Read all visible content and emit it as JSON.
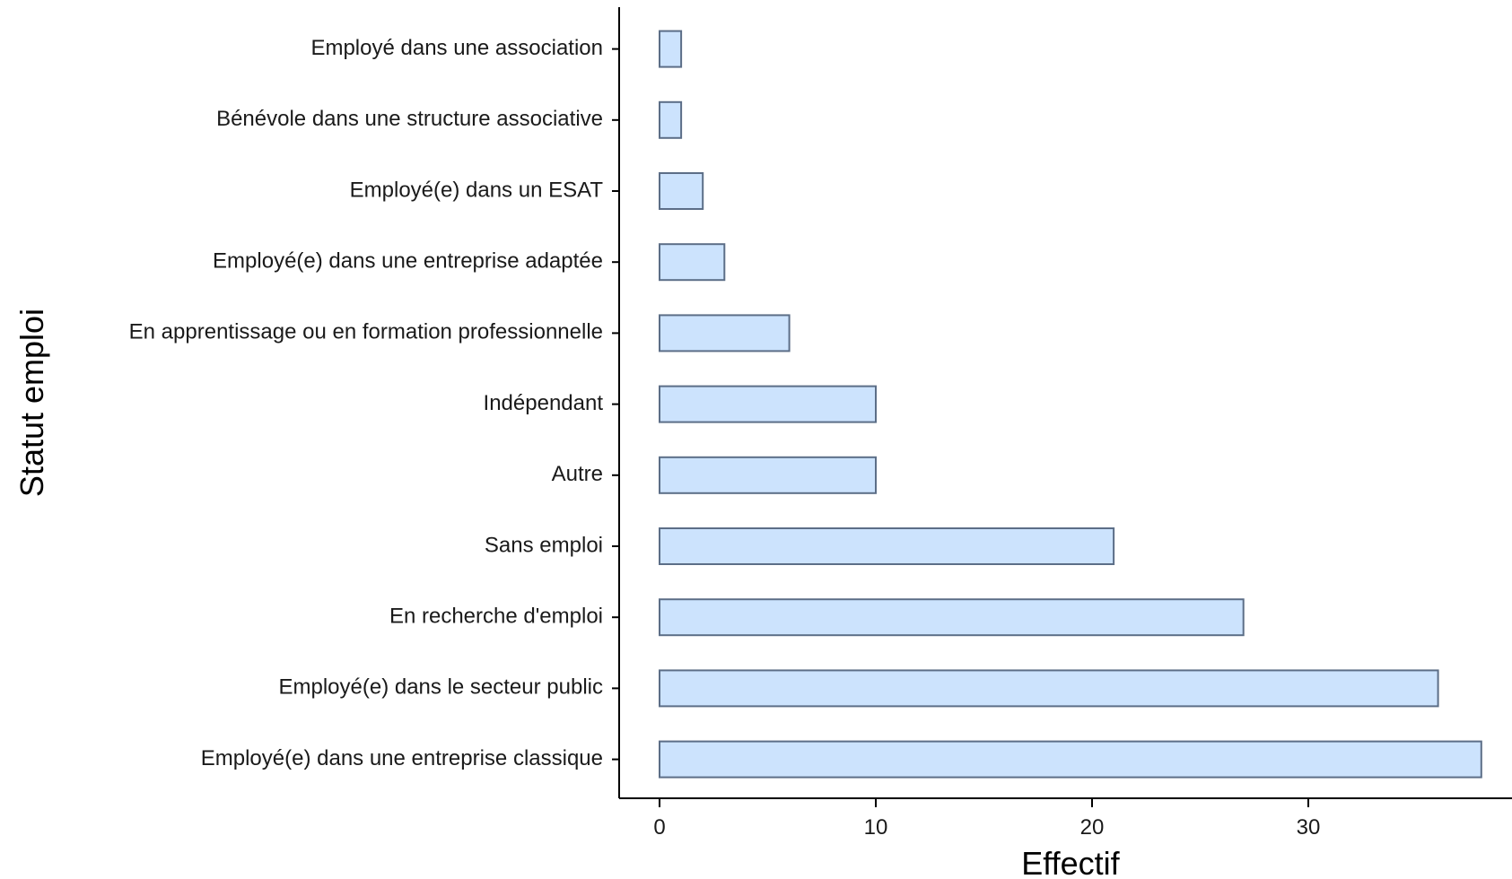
{
  "chart_data": {
    "type": "bar",
    "orientation": "horizontal",
    "title": "",
    "xlabel": "Effectif",
    "ylabel": "Statut emploi",
    "categories": [
      "Employé(e) dans une entreprise classique",
      "Employé(e) dans le secteur public",
      "En recherche d'emploi",
      "Sans emploi",
      "Autre",
      "Indépendant",
      "En apprentissage ou en formation professionnelle",
      "Employé(e) dans une entreprise adaptée",
      "Employé(e) dans un ESAT",
      "Bénévole dans une structure associative",
      "Employé dans une association"
    ],
    "values": [
      38,
      36,
      27,
      21,
      10,
      10,
      6,
      3,
      2,
      1,
      1
    ],
    "xlim": [
      0,
      38
    ],
    "xticks": [
      0,
      10,
      20,
      30
    ],
    "grid": false,
    "legend": "none",
    "colors": {
      "bar_fill": "#cce3fd",
      "bar_stroke": "#5c6e87",
      "axis": "#000000",
      "text": "#1a1a1a"
    }
  }
}
